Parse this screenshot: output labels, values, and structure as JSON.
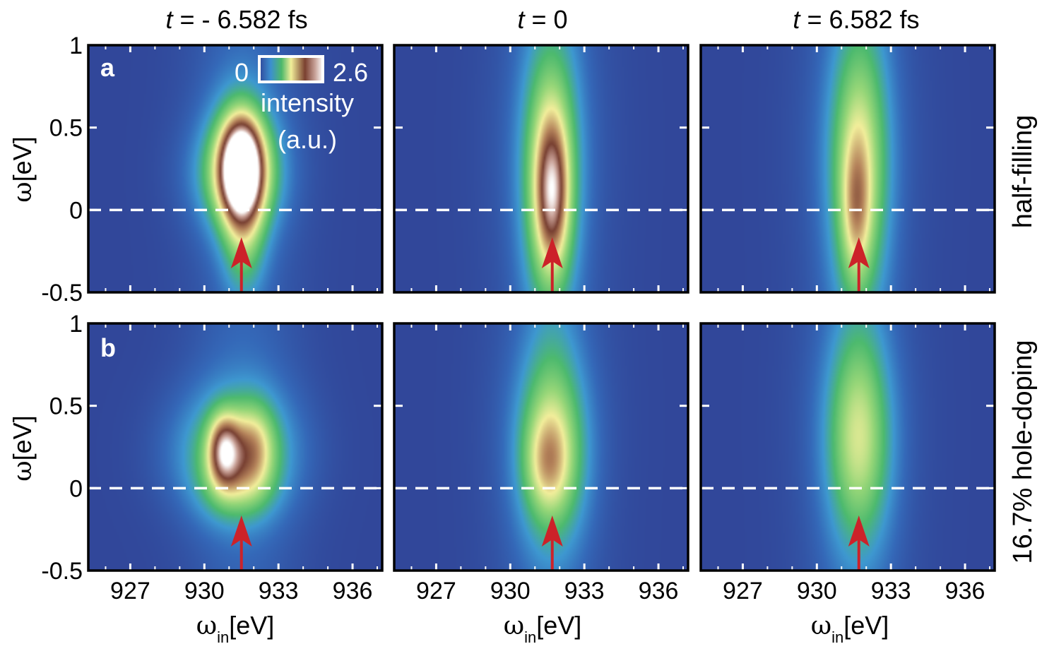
{
  "chart_data": {
    "type": "heatmap",
    "description_columns": [
      "t = -6.582 fs",
      "t = 0",
      "t = 6.582 fs"
    ],
    "col_titles": [
      {
        "italic": "t",
        "rest": " = - 6.582 fs"
      },
      {
        "italic": "t",
        "rest": " = 0"
      },
      {
        "italic": "t",
        "rest": " = 6.582 fs"
      }
    ],
    "row_labels": [
      "half-filling",
      "16.7% hole-doping"
    ],
    "panel_letters": [
      "a",
      "b"
    ],
    "xlabel": {
      "symbol": "ω",
      "sub": "in",
      "unit": "[eV]"
    },
    "ylabel": {
      "symbol": "ω",
      "unit": "[eV]"
    },
    "xlim": [
      925.3,
      937.2
    ],
    "ylim": [
      -0.5,
      1.0
    ],
    "xticks": [
      927,
      930,
      933,
      936
    ],
    "xtick_labels": [
      "927",
      "930",
      "933",
      "936"
    ],
    "yticks": [
      -0.5,
      0,
      0.5,
      1
    ],
    "ytick_labels": [
      "-0.5",
      "0",
      "0.5",
      "1"
    ],
    "zero_line": 0,
    "arrow_positions": [
      931.5,
      931.7,
      931.7
    ],
    "colorbar": {
      "min_label": "0",
      "max_label": "2.6",
      "title_line1": "intensity",
      "title_line2": "(a.u.)",
      "min": 0,
      "max": 2.6
    },
    "colors": {
      "background": "#31479a",
      "arrow": "#cc2229",
      "dash": "#ffffff"
    },
    "panels": [
      {
        "row": 0,
        "col": 0,
        "blobs": [
          {
            "x": 931.3,
            "y": 0.22,
            "sx": 1.3,
            "sy": 0.22,
            "amp": 0.4,
            "rot": -0.55
          },
          {
            "x": 931.5,
            "y": 0.25,
            "sx": 0.9,
            "sy": 0.3,
            "amp": 0.7,
            "rot": -0.9
          },
          {
            "x": 931.5,
            "y": 0.26,
            "sx": 0.55,
            "sy": 0.2,
            "amp": 1.3,
            "rot": -0.95
          },
          {
            "x": 931.6,
            "y": -0.2,
            "sx": 0.6,
            "sy": 0.25,
            "amp": 0.4,
            "rot": 0
          }
        ]
      },
      {
        "row": 0,
        "col": 1,
        "blobs": [
          {
            "x": 931.6,
            "y": 0.1,
            "sx": 0.8,
            "sy": 0.55,
            "amp": 0.6,
            "rot": -1.2
          },
          {
            "x": 931.7,
            "y": 0.1,
            "sx": 0.45,
            "sy": 0.3,
            "amp": 0.7,
            "rot": -1.3
          },
          {
            "x": 931.7,
            "y": 0.5,
            "sx": 0.8,
            "sy": 0.6,
            "amp": 0.25,
            "rot": 0
          }
        ]
      },
      {
        "row": 0,
        "col": 2,
        "blobs": [
          {
            "x": 931.7,
            "y": 0.15,
            "sx": 0.85,
            "sy": 0.6,
            "amp": 0.6,
            "rot": -1.3
          },
          {
            "x": 931.6,
            "y": 0.0,
            "sx": 0.4,
            "sy": 0.3,
            "amp": 0.4,
            "rot": -1.3
          },
          {
            "x": 931.8,
            "y": 0.6,
            "sx": 0.8,
            "sy": 0.6,
            "amp": 0.2,
            "rot": 0
          }
        ]
      },
      {
        "row": 1,
        "col": 0,
        "blobs": [
          {
            "x": 931.2,
            "y": 0.22,
            "sx": 1.7,
            "sy": 0.26,
            "amp": 0.55,
            "rot": 0
          },
          {
            "x": 930.8,
            "y": 0.23,
            "sx": 0.45,
            "sy": 0.15,
            "amp": 0.9,
            "rot": -1.1
          },
          {
            "x": 932.0,
            "y": 0.25,
            "sx": 0.6,
            "sy": 0.18,
            "amp": 0.5,
            "rot": 0
          },
          {
            "x": 931.3,
            "y": 0.0,
            "sx": 1.0,
            "sy": 0.15,
            "amp": 0.3,
            "rot": 0
          }
        ]
      },
      {
        "row": 1,
        "col": 1,
        "blobs": [
          {
            "x": 931.7,
            "y": 0.2,
            "sx": 1.0,
            "sy": 0.38,
            "amp": 0.6,
            "rot": -0.9
          },
          {
            "x": 931.5,
            "y": 0.15,
            "sx": 0.6,
            "sy": 0.2,
            "amp": 0.3,
            "rot": 0
          },
          {
            "x": 931.7,
            "y": 0.6,
            "sx": 0.8,
            "sy": 0.6,
            "amp": 0.2,
            "rot": 0
          }
        ]
      },
      {
        "row": 1,
        "col": 2,
        "blobs": [
          {
            "x": 931.7,
            "y": 0.25,
            "sx": 0.95,
            "sy": 0.45,
            "amp": 0.55,
            "rot": -1.1
          },
          {
            "x": 931.7,
            "y": 0.6,
            "sx": 0.8,
            "sy": 0.6,
            "amp": 0.2,
            "rot": 0
          }
        ]
      }
    ]
  }
}
